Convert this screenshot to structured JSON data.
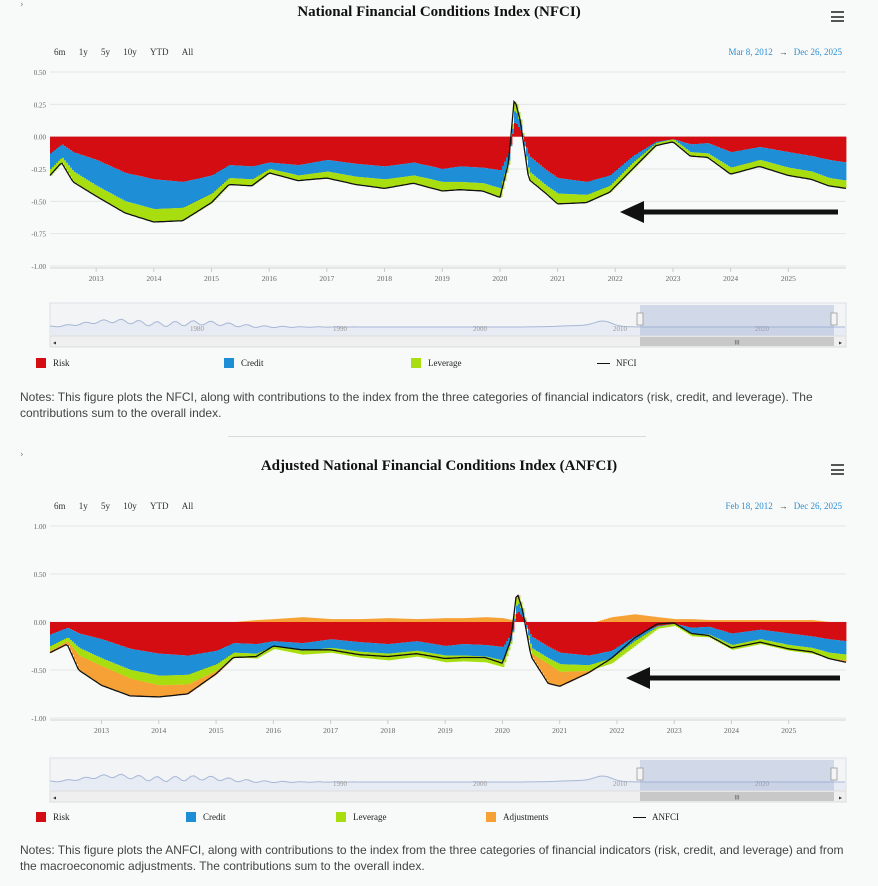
{
  "colors": {
    "risk": "#d40d12",
    "credit": "#1e8fd6",
    "leverage": "#a8dd10",
    "adjustments": "#f6a136",
    "line": "#111111",
    "accent": "#2b8fd2",
    "navigator": "#a8b7d8"
  },
  "range_buttons": [
    "6m",
    "1y",
    "5y",
    "10y",
    "YTD",
    "All"
  ],
  "icons": {
    "expander": "chevron-right-icon",
    "menu": "hamburger-menu-icon"
  },
  "nfci": {
    "title": "National Financial Conditions Index (NFCI)",
    "expander": "›",
    "date_from": "Mar 8, 2012",
    "date_arrow": "→",
    "date_to": "Dec 26, 2025",
    "notes": "Notes: This figure plots the NFCI, along with contributions to the index from the three categories of financial indicators (risk, credit, and leverage). The contributions sum to the overall index.",
    "navigator_labels": [
      "1980",
      "1990",
      "2000",
      "2010",
      "2020"
    ],
    "scroll_glyph": "III",
    "legend": [
      "Risk",
      "Credit",
      "Leverage",
      "NFCI"
    ]
  },
  "anfci": {
    "title": "Adjusted National Financial Conditions Index (ANFCI)",
    "expander": "›",
    "date_from": "Feb 18, 2012",
    "date_arrow": "→",
    "date_to": "Dec 26, 2025",
    "notes": "Notes: This figure plots the ANFCI, along with contributions to the index from the three categories of financial indicators (risk, credit, and leverage) and from the macroeconomic adjustments. The contributions sum to the overall index.",
    "navigator_labels": [
      "1990",
      "2000",
      "2010",
      "2020"
    ],
    "scroll_glyph": "III",
    "legend": [
      "Risk",
      "Credit",
      "Leverage",
      "Adjustments",
      "ANFCI"
    ]
  },
  "chart_data": [
    {
      "type": "area",
      "title": "National Financial Conditions Index (NFCI)",
      "xlim": [
        2012.2,
        2026.0
      ],
      "ylim": [
        -1.0,
        0.5
      ],
      "y_ticks": [
        "0.50",
        "0.25",
        "0.00",
        "-0.25",
        "-0.50",
        "-0.75",
        "-1.00"
      ],
      "x_ticks": [
        "2013",
        "2014",
        "2015",
        "2016",
        "2017",
        "2018",
        "2019",
        "2020",
        "2021",
        "2022",
        "2023",
        "2024",
        "2025"
      ],
      "grid": true,
      "legend_position": "bottom",
      "x": [
        2012.2,
        2012.4,
        2012.6,
        2013.0,
        2013.5,
        2014.0,
        2014.5,
        2015.0,
        2015.3,
        2015.7,
        2016.0,
        2016.5,
        2017.0,
        2017.5,
        2018.0,
        2018.5,
        2019.0,
        2019.3,
        2019.7,
        2020.0,
        2020.15,
        2020.25,
        2020.35,
        2020.5,
        2020.8,
        2021.0,
        2021.5,
        2021.9,
        2022.3,
        2022.7,
        2023.0,
        2023.3,
        2023.6,
        2024.0,
        2024.5,
        2025.0,
        2025.4,
        2025.7,
        2026.0
      ],
      "series": [
        {
          "name": "Risk",
          "values": [
            -0.13,
            -0.06,
            -0.12,
            -0.18,
            -0.28,
            -0.33,
            -0.35,
            -0.3,
            -0.22,
            -0.23,
            -0.2,
            -0.22,
            -0.18,
            -0.21,
            -0.23,
            -0.2,
            -0.25,
            -0.23,
            -0.24,
            -0.26,
            -0.12,
            0.12,
            0.05,
            -0.15,
            -0.26,
            -0.32,
            -0.35,
            -0.3,
            -0.15,
            -0.04,
            -0.02,
            -0.06,
            -0.05,
            -0.12,
            -0.08,
            -0.12,
            -0.15,
            -0.18,
            -0.2
          ]
        },
        {
          "name": "Credit",
          "values": [
            -0.12,
            -0.1,
            -0.15,
            -0.2,
            -0.22,
            -0.23,
            -0.2,
            -0.14,
            -0.1,
            -0.1,
            -0.05,
            -0.08,
            -0.09,
            -0.1,
            -0.1,
            -0.1,
            -0.1,
            -0.12,
            -0.12,
            -0.14,
            -0.05,
            0.1,
            0.04,
            -0.12,
            -0.12,
            -0.12,
            -0.1,
            -0.08,
            -0.05,
            -0.01,
            0.0,
            -0.06,
            -0.08,
            -0.12,
            -0.1,
            -0.12,
            -0.12,
            -0.14,
            -0.14
          ]
        },
        {
          "name": "Leverage",
          "values": [
            -0.05,
            -0.04,
            -0.08,
            -0.08,
            -0.09,
            -0.1,
            -0.1,
            -0.07,
            -0.05,
            -0.05,
            -0.03,
            -0.04,
            -0.05,
            -0.06,
            -0.07,
            -0.06,
            -0.07,
            -0.06,
            -0.06,
            -0.07,
            -0.03,
            0.08,
            0.04,
            -0.06,
            -0.06,
            -0.08,
            -0.06,
            -0.05,
            -0.05,
            -0.02,
            -0.02,
            -0.03,
            -0.03,
            -0.05,
            -0.05,
            -0.06,
            -0.06,
            -0.06,
            -0.06
          ]
        },
        {
          "name": "NFCI",
          "values": [
            -0.3,
            -0.2,
            -0.35,
            -0.46,
            -0.59,
            -0.66,
            -0.65,
            -0.51,
            -0.37,
            -0.38,
            -0.28,
            -0.34,
            -0.32,
            -0.37,
            -0.4,
            -0.36,
            -0.42,
            -0.41,
            -0.42,
            -0.47,
            -0.2,
            0.3,
            0.13,
            -0.33,
            -0.44,
            -0.52,
            -0.51,
            -0.43,
            -0.25,
            -0.07,
            -0.04,
            -0.15,
            -0.16,
            -0.29,
            -0.23,
            -0.3,
            -0.33,
            -0.38,
            -0.4
          ]
        }
      ]
    },
    {
      "type": "area",
      "title": "Adjusted National Financial Conditions Index (ANFCI)",
      "xlim": [
        2012.1,
        2026.0
      ],
      "ylim": [
        -1.0,
        1.0
      ],
      "y_ticks": [
        "1.00",
        "0.50",
        "0.00",
        "-0.50",
        "-1.00"
      ],
      "x_ticks": [
        "2013",
        "2014",
        "2015",
        "2016",
        "2017",
        "2018",
        "2019",
        "2020",
        "2021",
        "2022",
        "2023",
        "2024",
        "2025"
      ],
      "grid": true,
      "legend_position": "bottom",
      "x": [
        2012.1,
        2012.4,
        2012.6,
        2013.0,
        2013.5,
        2014.0,
        2014.5,
        2015.0,
        2015.3,
        2015.7,
        2016.0,
        2016.5,
        2017.0,
        2017.5,
        2018.0,
        2018.5,
        2019.0,
        2019.3,
        2019.7,
        2020.0,
        2020.15,
        2020.25,
        2020.35,
        2020.5,
        2020.8,
        2021.0,
        2021.5,
        2021.9,
        2022.3,
        2022.7,
        2023.0,
        2023.3,
        2023.6,
        2024.0,
        2024.5,
        2025.0,
        2025.4,
        2025.7,
        2026.0
      ],
      "series": [
        {
          "name": "Risk",
          "values": [
            -0.13,
            -0.06,
            -0.12,
            -0.18,
            -0.28,
            -0.33,
            -0.35,
            -0.3,
            -0.22,
            -0.23,
            -0.2,
            -0.22,
            -0.18,
            -0.21,
            -0.23,
            -0.2,
            -0.25,
            -0.23,
            -0.24,
            -0.26,
            -0.12,
            0.12,
            0.05,
            -0.15,
            -0.26,
            -0.32,
            -0.35,
            -0.3,
            -0.15,
            -0.04,
            -0.02,
            -0.06,
            -0.05,
            -0.12,
            -0.08,
            -0.12,
            -0.15,
            -0.18,
            -0.2
          ]
        },
        {
          "name": "Credit",
          "values": [
            -0.12,
            -0.1,
            -0.15,
            -0.2,
            -0.22,
            -0.23,
            -0.2,
            -0.14,
            -0.1,
            -0.1,
            -0.05,
            -0.08,
            -0.09,
            -0.1,
            -0.1,
            -0.1,
            -0.1,
            -0.12,
            -0.12,
            -0.14,
            -0.05,
            0.1,
            0.04,
            -0.12,
            -0.12,
            -0.12,
            -0.1,
            -0.08,
            -0.05,
            -0.01,
            0.0,
            -0.06,
            -0.08,
            -0.12,
            -0.1,
            -0.12,
            -0.12,
            -0.14,
            -0.14
          ]
        },
        {
          "name": "Leverage",
          "values": [
            -0.05,
            -0.04,
            -0.08,
            -0.08,
            -0.09,
            -0.1,
            -0.1,
            -0.07,
            -0.05,
            -0.05,
            -0.03,
            -0.04,
            -0.05,
            -0.06,
            -0.07,
            -0.06,
            -0.07,
            -0.06,
            -0.06,
            -0.07,
            -0.03,
            0.08,
            0.04,
            -0.06,
            -0.06,
            -0.08,
            -0.06,
            -0.05,
            -0.05,
            -0.02,
            -0.02,
            -0.03,
            -0.03,
            -0.05,
            -0.05,
            -0.06,
            -0.06,
            -0.06,
            -0.06
          ]
        },
        {
          "name": "Adjustments",
          "values": [
            -0.02,
            -0.03,
            -0.15,
            -0.2,
            -0.18,
            -0.12,
            -0.1,
            -0.03,
            0.0,
            0.02,
            0.03,
            0.05,
            0.03,
            0.03,
            0.04,
            0.03,
            0.04,
            0.04,
            0.05,
            0.04,
            0.02,
            0.02,
            0.0,
            -0.03,
            -0.2,
            -0.15,
            -0.02,
            0.05,
            0.08,
            0.05,
            0.03,
            0.03,
            0.02,
            0.02,
            0.02,
            0.02,
            0.02,
            0.0,
            -0.02
          ]
        },
        {
          "name": "ANFCI",
          "values": [
            -0.32,
            -0.23,
            -0.5,
            -0.66,
            -0.77,
            -0.78,
            -0.75,
            -0.54,
            -0.37,
            -0.36,
            -0.25,
            -0.29,
            -0.29,
            -0.34,
            -0.36,
            -0.33,
            -0.38,
            -0.37,
            -0.37,
            -0.43,
            -0.18,
            0.32,
            0.13,
            -0.36,
            -0.64,
            -0.67,
            -0.53,
            -0.38,
            -0.17,
            -0.02,
            -0.01,
            -0.12,
            -0.14,
            -0.27,
            -0.21,
            -0.28,
            -0.31,
            -0.38,
            -0.42
          ]
        }
      ]
    }
  ]
}
